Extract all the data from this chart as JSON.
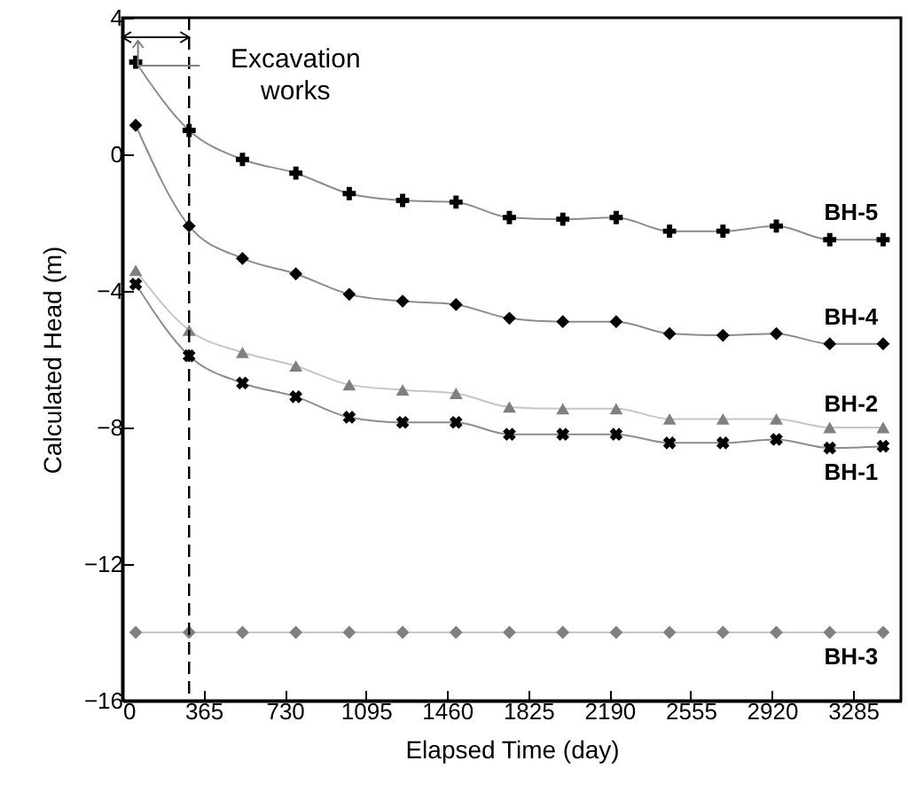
{
  "chart_data": {
    "type": "line",
    "xlabel": "Elapsed Time (day)",
    "ylabel": "Calculated Head (m)",
    "x": [
      60,
      300,
      540,
      780,
      1020,
      1260,
      1500,
      1740,
      1980,
      2220,
      2460,
      2700,
      2940,
      3180,
      3420
    ],
    "xlim": [
      0,
      3500
    ],
    "xticks": [
      0,
      365,
      730,
      1095,
      1460,
      1825,
      2190,
      2555,
      2920,
      3285
    ],
    "ylim": [
      -16,
      4
    ],
    "yticks": [
      -16,
      -12,
      -8,
      -4,
      0,
      4
    ],
    "grid": false,
    "series": [
      {
        "name": "BH-5",
        "color": "#000000",
        "marker": "cross",
        "values": [
          2.7,
          0.7,
          -0.15,
          -0.55,
          -1.15,
          -1.35,
          -1.4,
          -1.85,
          -1.9,
          -1.85,
          -2.25,
          -2.25,
          -2.1,
          -2.5,
          -2.5
        ]
      },
      {
        "name": "BH-4",
        "color": "#000000",
        "marker": "diamond",
        "values": [
          0.85,
          -2.1,
          -3.05,
          -3.5,
          -4.1,
          -4.3,
          -4.4,
          -4.8,
          -4.9,
          -4.9,
          -5.25,
          -5.3,
          -5.25,
          -5.55,
          -5.55
        ]
      },
      {
        "name": "BH-2",
        "color": "#808080",
        "marker": "triangle",
        "values": [
          -3.4,
          -5.15,
          -5.8,
          -6.2,
          -6.75,
          -6.9,
          -7.0,
          -7.4,
          -7.45,
          -7.45,
          -7.75,
          -7.75,
          -7.75,
          -8.0,
          -8.0
        ]
      },
      {
        "name": "BH-1",
        "color": "#000000",
        "marker": "cross",
        "values": [
          -3.8,
          -5.9,
          -6.7,
          -7.1,
          -7.7,
          -7.85,
          -7.85,
          -8.2,
          -8.2,
          -8.2,
          -8.45,
          -8.45,
          -8.35,
          -8.6,
          -8.55
        ]
      },
      {
        "name": "BH-3",
        "color": "#808080",
        "marker": "diamond",
        "values": [
          -14,
          -14,
          -14,
          -14,
          -14,
          -14,
          -14,
          -14,
          -14,
          -14,
          -14,
          -14,
          -14,
          -14,
          -14
        ]
      }
    ],
    "ref_lines": [
      {
        "axis": "x",
        "value": 300,
        "label": "Excavation works",
        "line_style": "dashed",
        "color": "#000000"
      }
    ]
  }
}
